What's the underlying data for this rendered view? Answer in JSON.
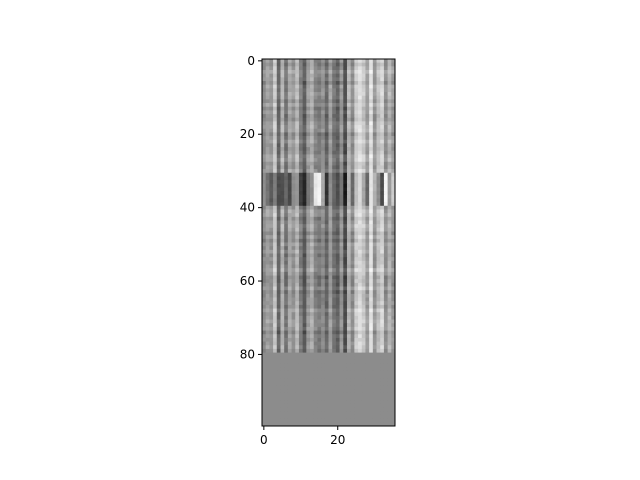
{
  "chart_data": {
    "type": "heatmap",
    "colormap": "gray",
    "n_cols": 36,
    "n_rows": 100,
    "data_rows": 80,
    "fill_value_rows_80_99": 0.55,
    "column_base": [
      0.55,
      0.62,
      0.58,
      0.78,
      0.4,
      0.7,
      0.45,
      0.65,
      0.58,
      0.72,
      0.5,
      0.35,
      0.6,
      0.68,
      0.52,
      0.48,
      0.55,
      0.4,
      0.62,
      0.45,
      0.38,
      0.58,
      0.3,
      0.7,
      0.55,
      0.8,
      0.85,
      0.78,
      0.62,
      0.88,
      0.58,
      0.75,
      0.82,
      0.55,
      0.7,
      0.6
    ],
    "band_rows": [
      31,
      39
    ],
    "band_column_values": [
      0.55,
      0.45,
      0.35,
      0.5,
      0.3,
      0.3,
      0.4,
      0.28,
      0.55,
      0.6,
      0.25,
      0.15,
      0.45,
      0.55,
      0.9,
      0.95,
      0.65,
      0.2,
      0.55,
      0.4,
      0.3,
      0.45,
      0.1,
      0.7,
      0.4,
      0.75,
      0.85,
      0.65,
      0.4,
      0.9,
      0.7,
      0.55,
      0.3,
      0.95,
      0.6,
      0.8
    ],
    "x_ticks": [
      0,
      20
    ],
    "y_ticks": [
      0,
      20,
      40,
      60,
      80
    ],
    "xlim": [
      -0.5,
      35.5
    ],
    "ylim": [
      99.5,
      -0.5
    ],
    "xlabel": "",
    "ylabel": "",
    "title": ""
  }
}
